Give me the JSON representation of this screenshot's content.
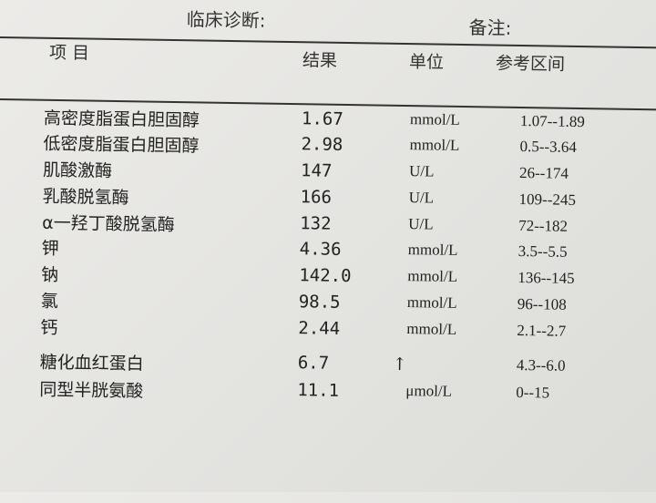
{
  "header": {
    "diagnosis_label": "临床诊断:",
    "remark_label": "备注:"
  },
  "columns": {
    "item": "项 目",
    "result": "结果",
    "unit": "单位",
    "range": "参考区间"
  },
  "rows": [
    {
      "name": "高密度脂蛋白胆固醇",
      "result": "1.67",
      "flag": "",
      "unit": "mmol/L",
      "range": "1.07--1.89"
    },
    {
      "name": "低密度脂蛋白胆固醇",
      "result": "2.98",
      "flag": "",
      "unit": "mmol/L",
      "range": "0.5--3.64"
    },
    {
      "name": "肌酸激酶",
      "result": "147",
      "flag": "",
      "unit": "U/L",
      "range": "26--174"
    },
    {
      "name": "乳酸脱氢酶",
      "result": "166",
      "flag": "",
      "unit": "U/L",
      "range": "109--245"
    },
    {
      "name": "α一羟丁酸脱氢酶",
      "result": "132",
      "flag": "",
      "unit": "U/L",
      "range": "72--182"
    },
    {
      "name": "钾",
      "result": "4.36",
      "flag": "",
      "unit": "mmol/L",
      "range": "3.5--5.5"
    },
    {
      "name": "钠",
      "result": "142.0",
      "flag": "",
      "unit": "mmol/L",
      "range": "136--145"
    },
    {
      "name": "氯",
      "result": "98.5",
      "flag": "",
      "unit": "mmol/L",
      "range": "96--108"
    },
    {
      "name": "钙",
      "result": "2.44",
      "flag": "",
      "unit": "mmol/L",
      "range": "2.1--2.7"
    },
    {
      "name": "糖化血红蛋白",
      "result": "6.7",
      "flag": "↑",
      "unit": "",
      "range": "4.3--6.0"
    },
    {
      "name": "同型半胱氨酸",
      "result": "11.1",
      "flag": "",
      "unit": "μmol/L",
      "range": "0--15"
    }
  ]
}
